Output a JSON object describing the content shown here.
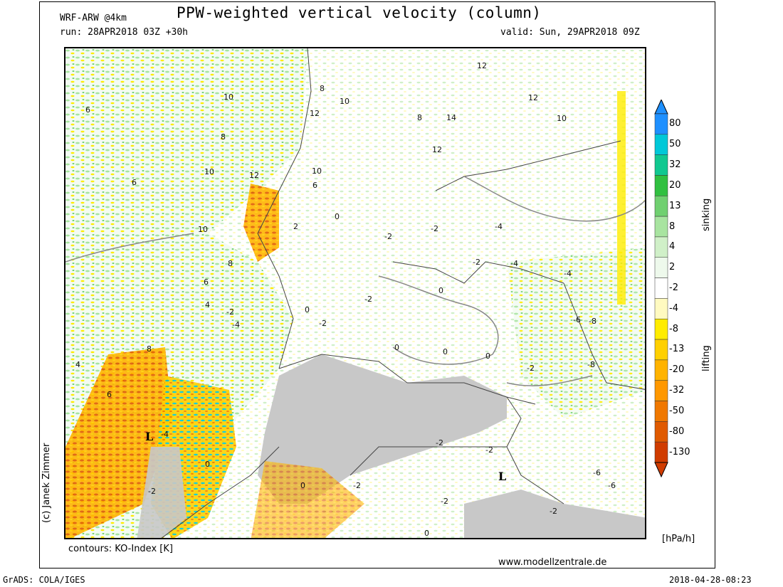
{
  "header": {
    "model": "WRF-ARW @4km",
    "title": "PPW-weighted vertical velocity (column)",
    "run": "run: 28APR2018 03Z +30h",
    "valid": "valid: Sun, 29APR2018 09Z"
  },
  "footer": {
    "contours": "contours: KO-Index [K]",
    "website": "www.modellzentrale.de",
    "grads": "GrADS: COLA/IGES",
    "timestamp": "2018-04-28-08:23",
    "credit": "(c) Janek Zimmer"
  },
  "legend": {
    "unit": "[hPa/h]",
    "sinking_label": "sinking",
    "lifting_label": "lifting",
    "levels": [
      "80",
      "50",
      "32",
      "20",
      "13",
      "8",
      "4",
      "2",
      "-2",
      "-4",
      "-8",
      "-13",
      "-20",
      "-32",
      "-50",
      "-80",
      "-130"
    ],
    "colors": [
      "#1e90ff",
      "#00c8d8",
      "#10c890",
      "#30c040",
      "#70d070",
      "#a8e4a0",
      "#d0f0c8",
      "#eef9ec",
      "#ffffff",
      "#fffac0",
      "#ffec00",
      "#ffd000",
      "#ffb300",
      "#ff9800",
      "#f07800",
      "#e05a00",
      "#d03c00"
    ]
  },
  "map": {
    "contour_labels": [
      "10",
      "12",
      "8",
      "6",
      "10",
      "12",
      "10",
      "8",
      "12",
      "12",
      "14",
      "12",
      "10",
      "8",
      "6",
      "10",
      "6",
      "2",
      "0",
      "-2",
      "-2",
      "-4",
      "-2",
      "-4",
      "-4",
      "-6",
      "-8",
      "-2",
      "-8",
      "0",
      "0",
      "0",
      "0",
      "0",
      "-2",
      "-2",
      "-2",
      "-4",
      "-2",
      "-6",
      "-6",
      "-2",
      "-2",
      "-2",
      "0",
      "-2",
      "6",
      "8",
      "4",
      "6",
      "4",
      "8",
      "10",
      "0",
      "0",
      "-2",
      "-4"
    ],
    "low_markers": [
      "L",
      "L"
    ],
    "colors": {
      "sea": "#f3fbf3",
      "alps_gray": "#c8c8c8",
      "border": "#444444"
    }
  }
}
